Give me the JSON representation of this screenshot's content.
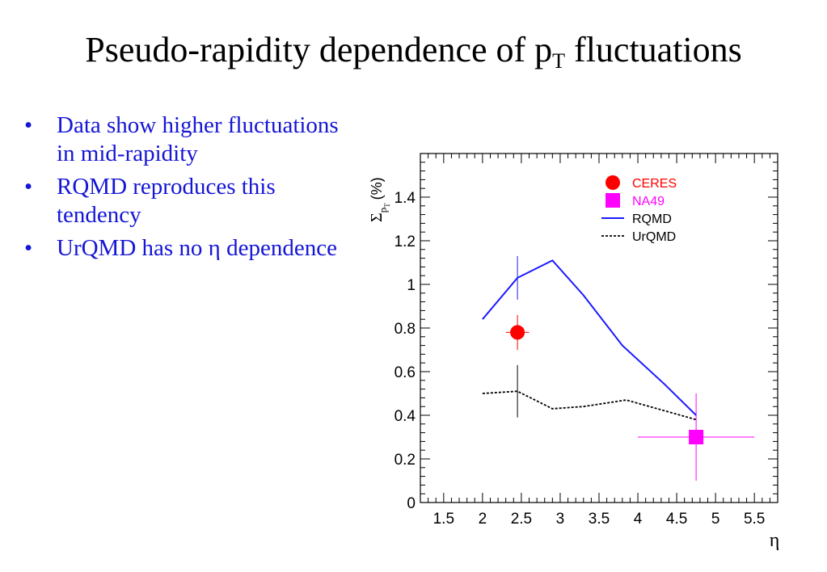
{
  "slide": {
    "title_main": "Pseudo-rapidity dependence of p",
    "title_sub": "T",
    "title_end": " fluctuations",
    "bullet_char": "•",
    "bullets": [
      "Data show higher fluctuations in mid-rapidity",
      "RQMD reproduces this tendency",
      "UrQMD has no η dependence"
    ]
  },
  "chart_data": {
    "type": "line",
    "xlabel": "η",
    "ylabel_main": "Σ",
    "ylabel_sub": "p",
    "ylabel_subsub": "T",
    "ylabel_unit": "(%)",
    "xlim": [
      1.2,
      5.8
    ],
    "ylim": [
      0,
      1.6
    ],
    "x_ticks": [
      1.5,
      2,
      2.5,
      3,
      3.5,
      4,
      4.5,
      5,
      5.5
    ],
    "x_tick_labels": [
      "1.5",
      "2",
      "2.5",
      "3",
      "3.5",
      "4",
      "4.5",
      "5",
      "5.5"
    ],
    "y_ticks": [
      0,
      0.2,
      0.4,
      0.6,
      0.8,
      1,
      1.2,
      1.4
    ],
    "y_tick_labels": [
      "0",
      "0.2",
      "0.4",
      "0.6",
      "0.8",
      "1",
      "1.2",
      "1.4"
    ],
    "legend_position": "top-right",
    "legend": [
      "CERES",
      "NA49",
      "RQMD",
      "UrQMD"
    ],
    "series": [
      {
        "name": "CERES",
        "kind": "points",
        "marker": "circle",
        "color": "#ff0000",
        "points": [
          {
            "x": 2.45,
            "y": 0.78,
            "xerr": 0.15,
            "yerr": 0.08
          }
        ]
      },
      {
        "name": "NA49",
        "kind": "points",
        "marker": "square",
        "color": "#ff00ff",
        "points": [
          {
            "x": 4.75,
            "y": 0.3,
            "xerr": 0.75,
            "yerr": 0.2
          }
        ]
      },
      {
        "name": "RQMD",
        "kind": "line",
        "style": "solid",
        "color": "#1a1aff",
        "x": [
          2.0,
          2.45,
          2.9,
          3.3,
          3.8,
          4.35,
          4.75
        ],
        "y": [
          0.84,
          1.03,
          1.11,
          0.95,
          0.72,
          0.54,
          0.4
        ],
        "error_bars": [
          {
            "x": 2.45,
            "y": 1.03,
            "yerr": 0.1
          }
        ]
      },
      {
        "name": "UrQMD",
        "kind": "line",
        "style": "dotted",
        "color": "#000000",
        "x": [
          2.0,
          2.45,
          2.9,
          3.3,
          3.85,
          4.35,
          4.75
        ],
        "y": [
          0.5,
          0.51,
          0.43,
          0.44,
          0.47,
          0.42,
          0.38
        ],
        "error_bars": [
          {
            "x": 2.45,
            "y": 0.51,
            "yerr": 0.12
          }
        ]
      }
    ]
  }
}
